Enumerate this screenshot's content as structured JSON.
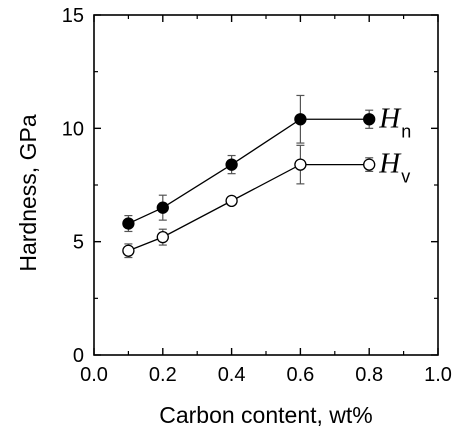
{
  "chart_data": {
    "type": "scatter",
    "title": "",
    "xlabel": "Carbon content, wt%",
    "ylabel": "Hardness, GPa",
    "xlim": [
      0.0,
      1.0
    ],
    "ylim": [
      0,
      15
    ],
    "xticks": [
      "0.0",
      "0.2",
      "0.4",
      "0.6",
      "0.8",
      "1.0"
    ],
    "yticks": [
      "0",
      "5",
      "10",
      "15"
    ],
    "grid": false,
    "legend": "inline labels at right end of series",
    "series": [
      {
        "label_main": "H",
        "label_sub": "n",
        "marker": "filled-circle",
        "color": "#000000",
        "x": [
          0.1,
          0.2,
          0.4,
          0.6,
          0.8
        ],
        "y": [
          5.8,
          6.5,
          8.4,
          10.4,
          10.4
        ],
        "yerr": [
          0.35,
          0.55,
          0.4,
          1.05,
          0.4
        ]
      },
      {
        "label_main": "H",
        "label_sub": "v",
        "marker": "open-circle",
        "color": "#000000",
        "x": [
          0.1,
          0.2,
          0.4,
          0.6,
          0.8
        ],
        "y": [
          4.6,
          5.2,
          6.8,
          8.4,
          8.4
        ],
        "yerr": [
          0.3,
          0.35,
          0.1,
          0.85,
          0.3
        ]
      }
    ]
  }
}
